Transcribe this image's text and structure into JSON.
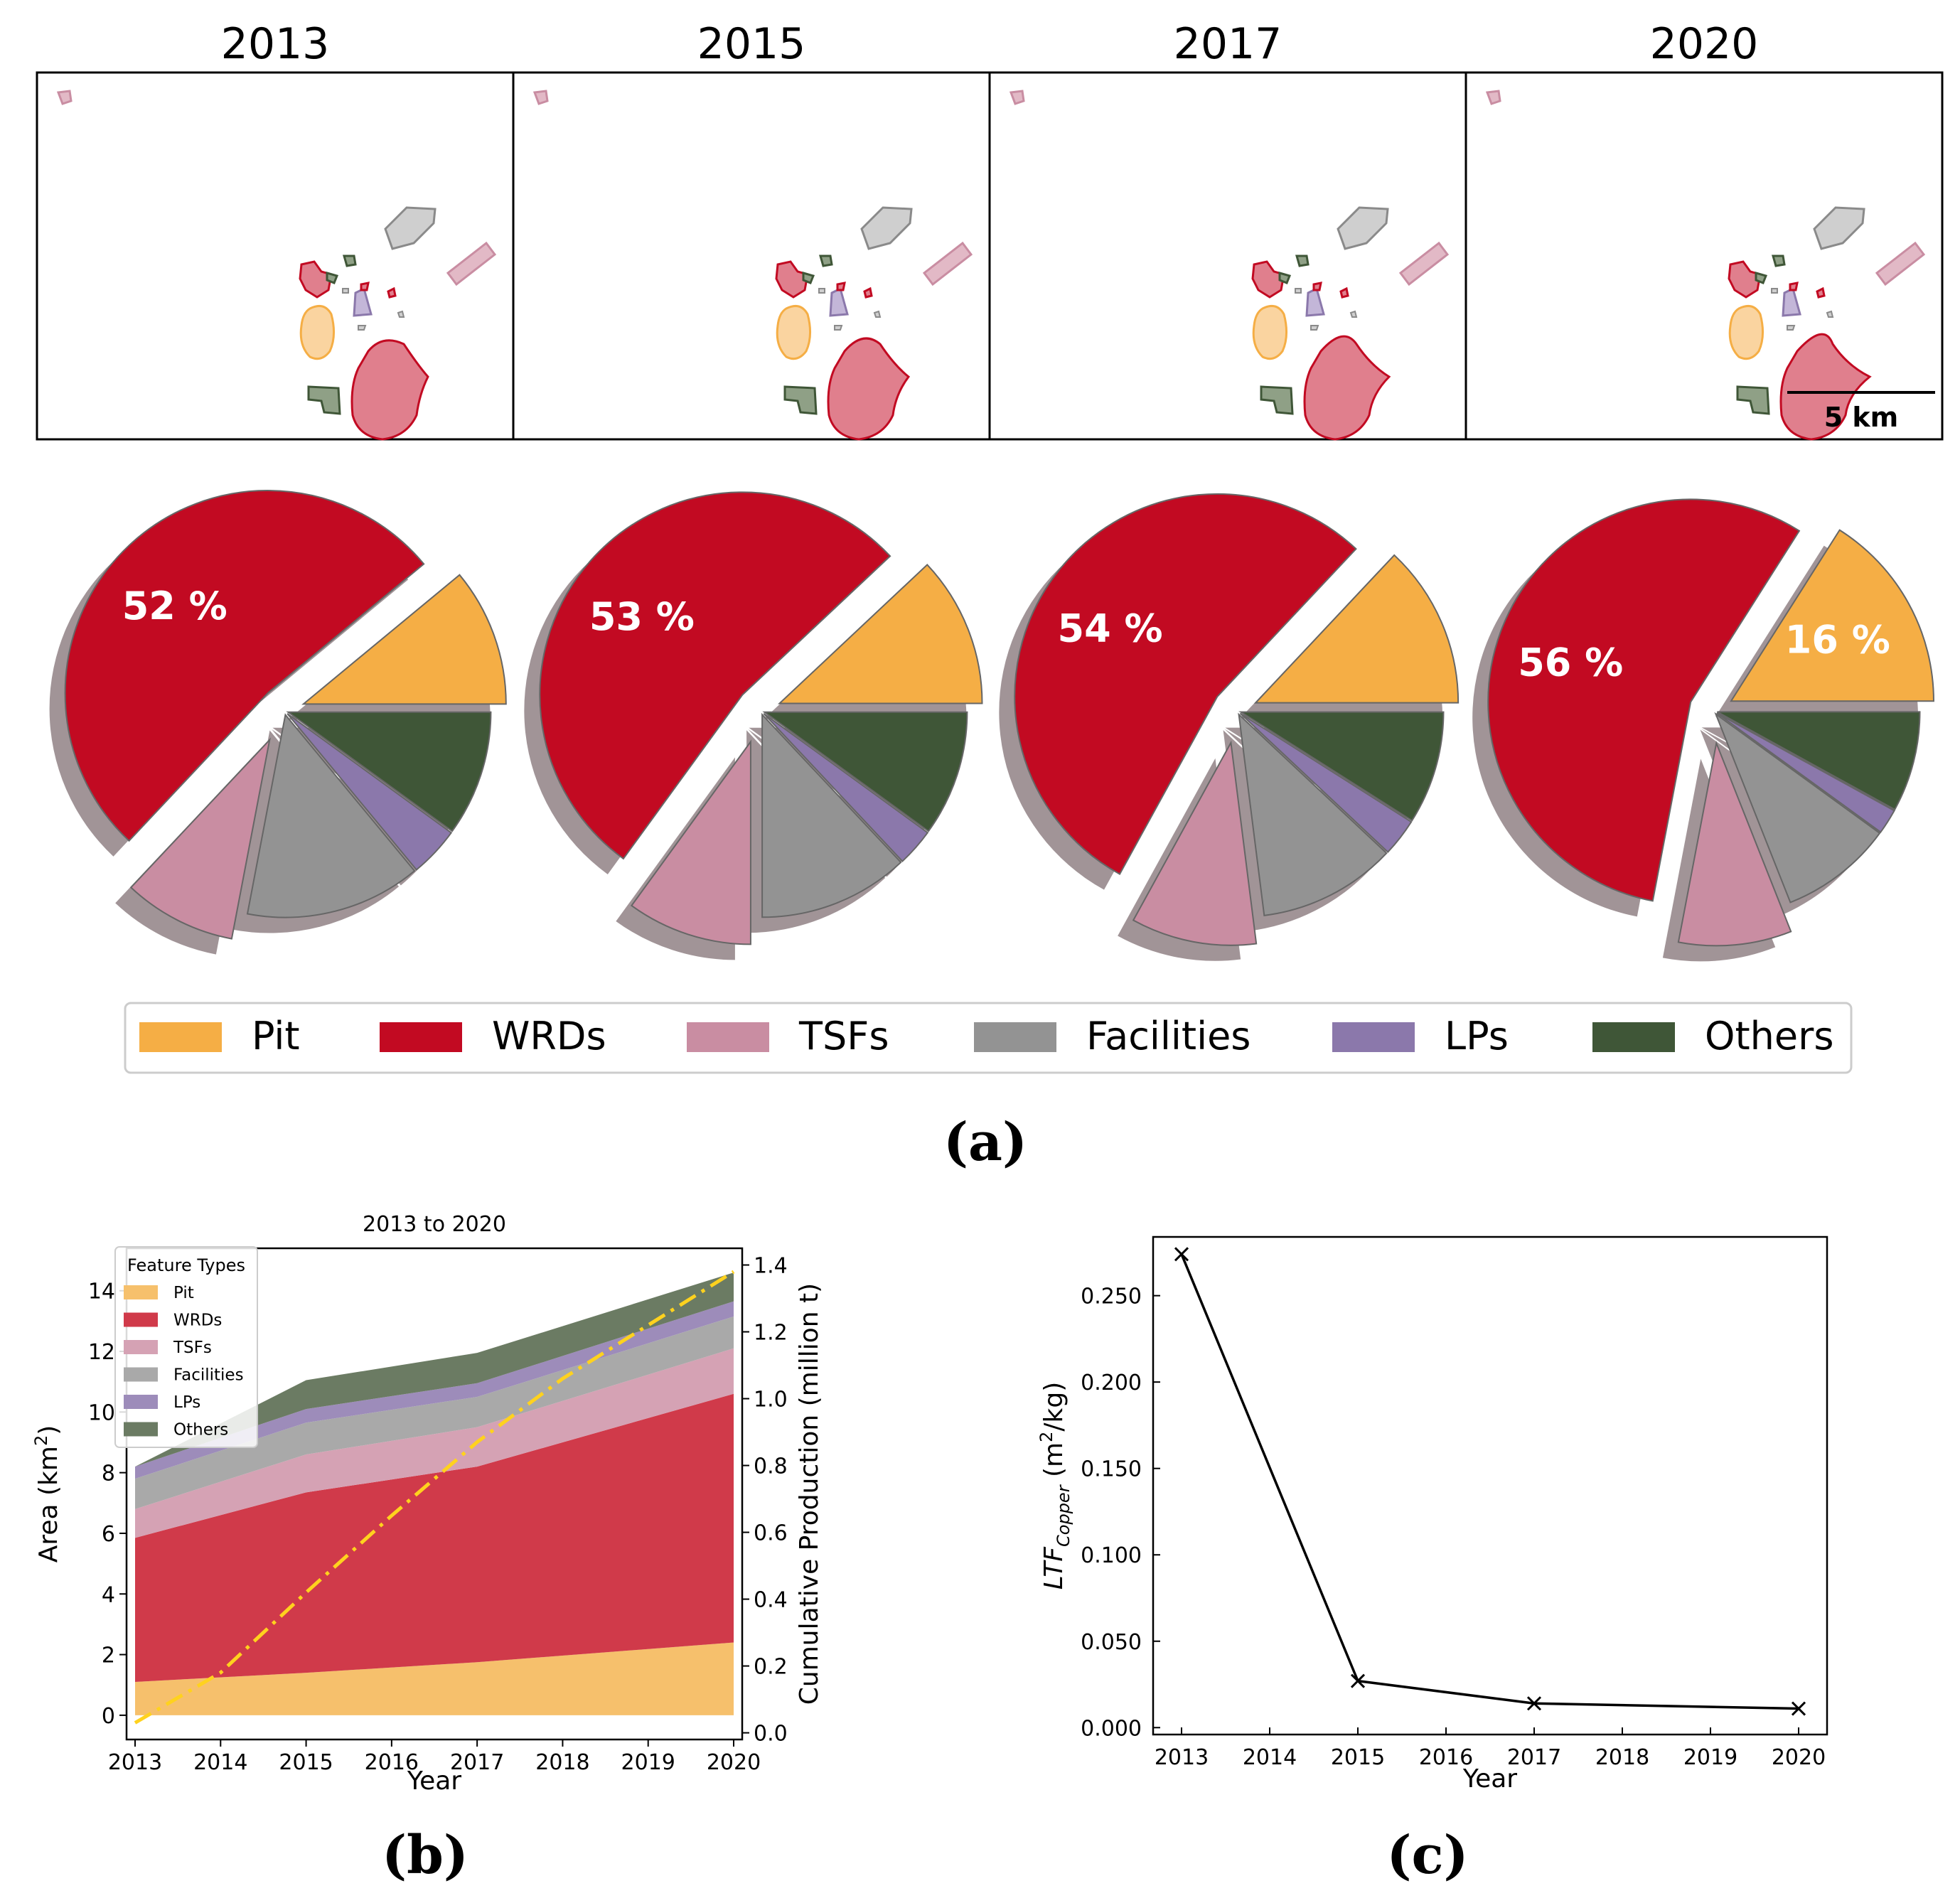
{
  "colors": {
    "Pit": "#f5ae45",
    "WRDs": "#c20a22",
    "TSFs": "#c98da2",
    "Facilities": "#939393",
    "LPs": "#8b78ab",
    "Others": "#3f5637"
  },
  "maps": {
    "years": [
      "2013",
      "2015",
      "2017",
      "2020"
    ],
    "scale_label": "5 km"
  },
  "pies": [
    {
      "year": "2013",
      "label": "52 %",
      "pit_label": "",
      "values": {
        "Pit": 11,
        "WRDs": 52,
        "TSFs": 9,
        "Facilities": 14,
        "LPs": 4,
        "Others": 10
      }
    },
    {
      "year": "2015",
      "label": "53 %",
      "pit_label": "",
      "values": {
        "Pit": 12,
        "WRDs": 53,
        "TSFs": 10,
        "Facilities": 12,
        "LPs": 3,
        "Others": 10
      }
    },
    {
      "year": "2017",
      "label": "54 %",
      "pit_label": "",
      "values": {
        "Pit": 13,
        "WRDs": 54,
        "TSFs": 10,
        "Facilities": 11,
        "LPs": 3,
        "Others": 9
      }
    },
    {
      "year": "2020",
      "label": "56 %",
      "pit_label": "16 %",
      "values": {
        "Pit": 16,
        "WRDs": 56,
        "TSFs": 9,
        "Facilities": 9,
        "LPs": 2,
        "Others": 8
      }
    }
  ],
  "legend_a": [
    "Pit",
    "WRDs",
    "TSFs",
    "Facilities",
    "LPs",
    "Others"
  ],
  "panel_labels": {
    "a": "(a)",
    "b": "(b)",
    "c": "(c)"
  },
  "chart_data": [
    {
      "type": "area",
      "title": "2013 to 2020",
      "xlabel": "Year",
      "ylabel": "Area (km",
      "ylabel_sup": "2",
      "ylabel_end": ")",
      "y2label": "Cumulative Production (million t)",
      "legend_title": "Feature Types",
      "x": [
        2013,
        2015,
        2017,
        2020
      ],
      "xticks": [
        "2013",
        "2014",
        "2015",
        "2016",
        "2017",
        "2018",
        "2019",
        "2020"
      ],
      "yticks": [
        "0",
        "2",
        "4",
        "6",
        "8",
        "10",
        "12",
        "14"
      ],
      "y2ticks": [
        "0.0",
        "0.2",
        "0.4",
        "0.6",
        "0.8",
        "1.0",
        "1.2",
        "1.4"
      ],
      "ylim": [
        -0.8,
        15.4
      ],
      "y2lim": [
        -0.02,
        1.45
      ],
      "series": [
        {
          "name": "Pit",
          "color": "#f6c06c",
          "values": [
            1.1,
            1.4,
            1.75,
            2.4
          ]
        },
        {
          "name": "WRDs",
          "color": "#d03a4a",
          "values": [
            4.75,
            5.95,
            6.45,
            8.2
          ]
        },
        {
          "name": "TSFs",
          "color": "#d5a2b4",
          "values": [
            0.95,
            1.25,
            1.3,
            1.5
          ]
        },
        {
          "name": "Facilities",
          "color": "#a9a9a9",
          "values": [
            1.0,
            1.05,
            1.0,
            1.05
          ]
        },
        {
          "name": "LPs",
          "color": "#9d8cba",
          "values": [
            0.4,
            0.45,
            0.45,
            0.5
          ]
        },
        {
          "name": "Others",
          "color": "#6b7b63",
          "values": [
            0.0,
            0.95,
            1.0,
            0.95
          ]
        }
      ],
      "production": {
        "x": [
          2013,
          2014,
          2015,
          2016,
          2017,
          2018,
          2019,
          2020
        ],
        "values": [
          0.03,
          0.18,
          0.42,
          0.65,
          0.87,
          1.06,
          1.22,
          1.38
        ],
        "color": "#ffd21e"
      }
    },
    {
      "type": "line",
      "xlabel": "Year",
      "ylabel_pre": "LTF",
      "ylabel_sub": "Copper",
      "ylabel_mid": " (m",
      "ylabel_sup": "2",
      "ylabel_end": "/kg)",
      "x": [
        2013,
        2015,
        2017,
        2020
      ],
      "values": [
        0.274,
        0.027,
        0.014,
        0.011
      ],
      "xticks": [
        "2013",
        "2014",
        "2015",
        "2016",
        "2017",
        "2018",
        "2019",
        "2020"
      ],
      "yticks": [
        "0.000",
        "0.050",
        "0.100",
        "0.150",
        "0.200",
        "0.250"
      ],
      "ylim": [
        -0.004,
        0.284
      ]
    }
  ]
}
